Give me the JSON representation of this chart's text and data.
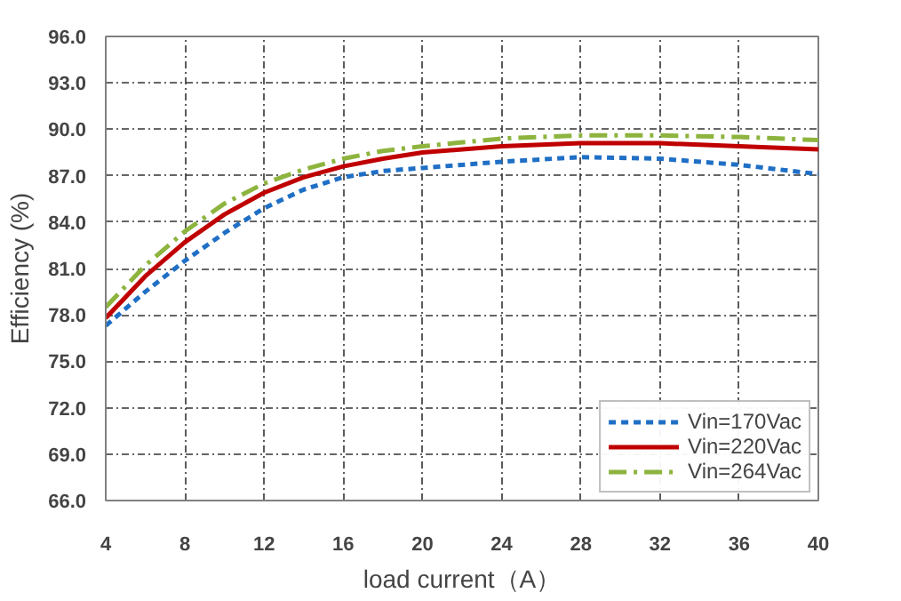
{
  "chart_data": {
    "type": "line",
    "xlabel": "load current（A）",
    "ylabel": "Efficiency (%)",
    "x": [
      4,
      6,
      8,
      10,
      12,
      14,
      16,
      18,
      20,
      24,
      28,
      32,
      36,
      40
    ],
    "xlim": [
      4,
      40
    ],
    "xticks": [
      4,
      8,
      12,
      16,
      20,
      24,
      28,
      32,
      36,
      40
    ],
    "ylim": [
      66,
      96
    ],
    "yticks": [
      {
        "value": 66,
        "label": "66.0"
      },
      {
        "value": 69,
        "label": "69.0"
      },
      {
        "value": 72,
        "label": "72.0"
      },
      {
        "value": 75,
        "label": "75.0"
      },
      {
        "value": 78,
        "label": "78.0"
      },
      {
        "value": 81,
        "label": "81.0"
      },
      {
        "value": 84,
        "label": "84.0"
      },
      {
        "value": 87,
        "label": "87.0"
      },
      {
        "value": 90,
        "label": "90.0"
      },
      {
        "value": 93,
        "label": "93.0"
      },
      {
        "value": 96,
        "label": "96.0"
      }
    ],
    "grid": true,
    "legend": "bottom right",
    "series": [
      {
        "name": "Vin=170Vac",
        "color": "#1f6fc5",
        "line_style": "dashed",
        "values": [
          77.3,
          79.5,
          81.5,
          83.3,
          84.9,
          86.1,
          86.9,
          87.3,
          87.5,
          87.9,
          88.2,
          88.1,
          87.7,
          87.1
        ]
      },
      {
        "name": "Vin=220Vac",
        "color": "#c00000",
        "line_style": "solid",
        "values": [
          77.8,
          80.5,
          82.7,
          84.5,
          85.9,
          86.9,
          87.6,
          88.1,
          88.5,
          88.9,
          89.1,
          89.1,
          88.9,
          88.7
        ]
      },
      {
        "name": "Vin=264Vac",
        "color": "#8db43e",
        "line_style": "dashdot",
        "values": [
          78.5,
          81.2,
          83.4,
          85.2,
          86.5,
          87.4,
          88.1,
          88.6,
          88.9,
          89.4,
          89.6,
          89.6,
          89.5,
          89.3
        ]
      }
    ]
  }
}
